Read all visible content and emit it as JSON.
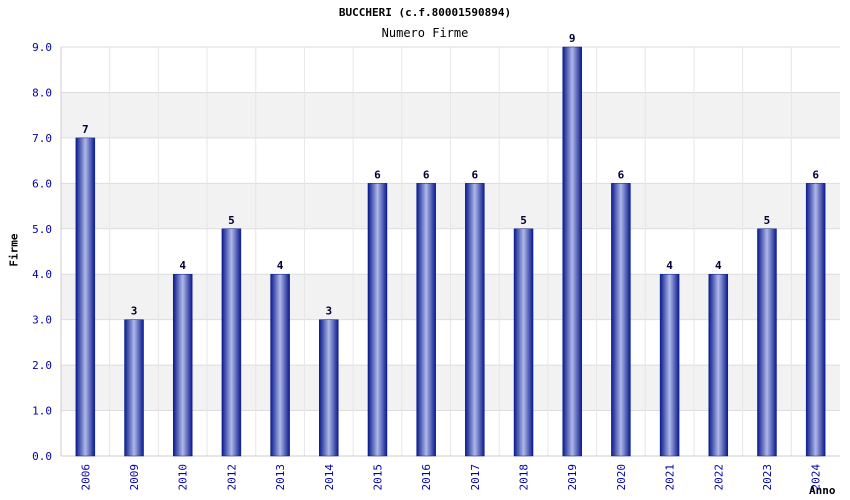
{
  "chart_data": {
    "type": "bar",
    "title": "BUCCHERI (c.f.80001590894)",
    "subtitle": "Numero Firme",
    "xlabel": "Anno",
    "ylabel": "Firme",
    "categories": [
      "2006",
      "2009",
      "2010",
      "2012",
      "2013",
      "2014",
      "2015",
      "2016",
      "2017",
      "2018",
      "2019",
      "2020",
      "2021",
      "2022",
      "2023",
      "2024"
    ],
    "values": [
      7,
      3,
      4,
      5,
      4,
      3,
      6,
      6,
      6,
      5,
      9,
      6,
      4,
      4,
      5,
      6
    ],
    "data_labels": [
      "7",
      "3",
      "4",
      "5",
      "4",
      "3",
      "6",
      "6",
      "6",
      "5",
      "9",
      "6",
      "4",
      "4",
      "5",
      "6"
    ],
    "ylim": [
      0,
      9
    ],
    "yticks": [
      "0.0",
      "1.0",
      "2.0",
      "3.0",
      "4.0",
      "5.0",
      "6.0",
      "7.0",
      "8.0",
      "9.0"
    ],
    "grid": true,
    "legend": "none",
    "colors": {
      "bar_dark": "#0a1a8c",
      "bar_light": "#aeb8e8",
      "tick_label": "#0000aa",
      "band": "#f2f2f2",
      "grid": "#dddddd"
    }
  }
}
